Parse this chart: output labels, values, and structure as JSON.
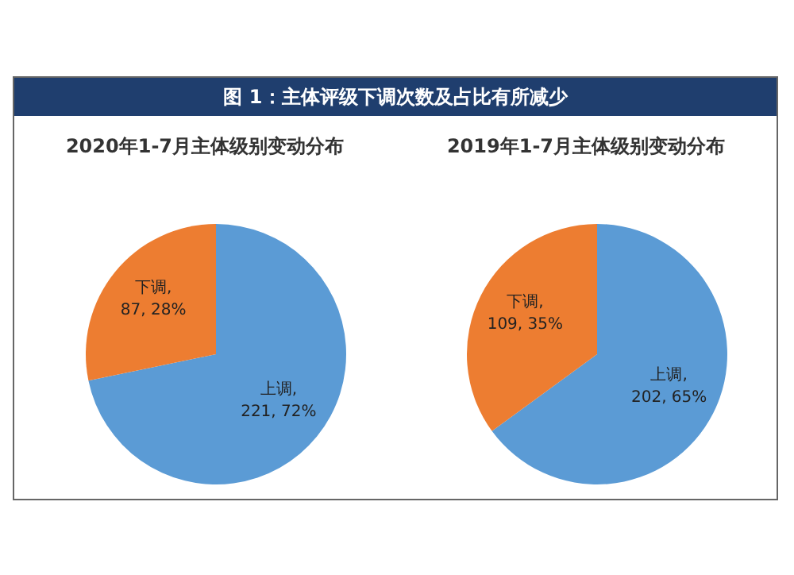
{
  "chart_data": [
    {
      "type": "pie",
      "title": "图 1：主体评级下调次数及占比有所减少",
      "subtitle": "2020年1-7月主体级别变动分布",
      "categories": [
        "上调",
        "下调"
      ],
      "values": [
        221,
        87
      ],
      "colors": [
        "#5b9bd5",
        "#ed7d31"
      ],
      "value_labels": [
        ", 221, 72%",
        ", 87, 28%"
      ],
      "legend": false
    },
    {
      "type": "pie",
      "title": "2019年1-7月主体级别变动分布",
      "categories": [
        "上调",
        "下调"
      ],
      "values": [
        202,
        109
      ],
      "colors": [
        "#5b9bd5",
        "#ed7d31"
      ],
      "value_labels": [
        ", 202, 65%",
        ", 109, 35%"
      ],
      "legend": false
    }
  ]
}
